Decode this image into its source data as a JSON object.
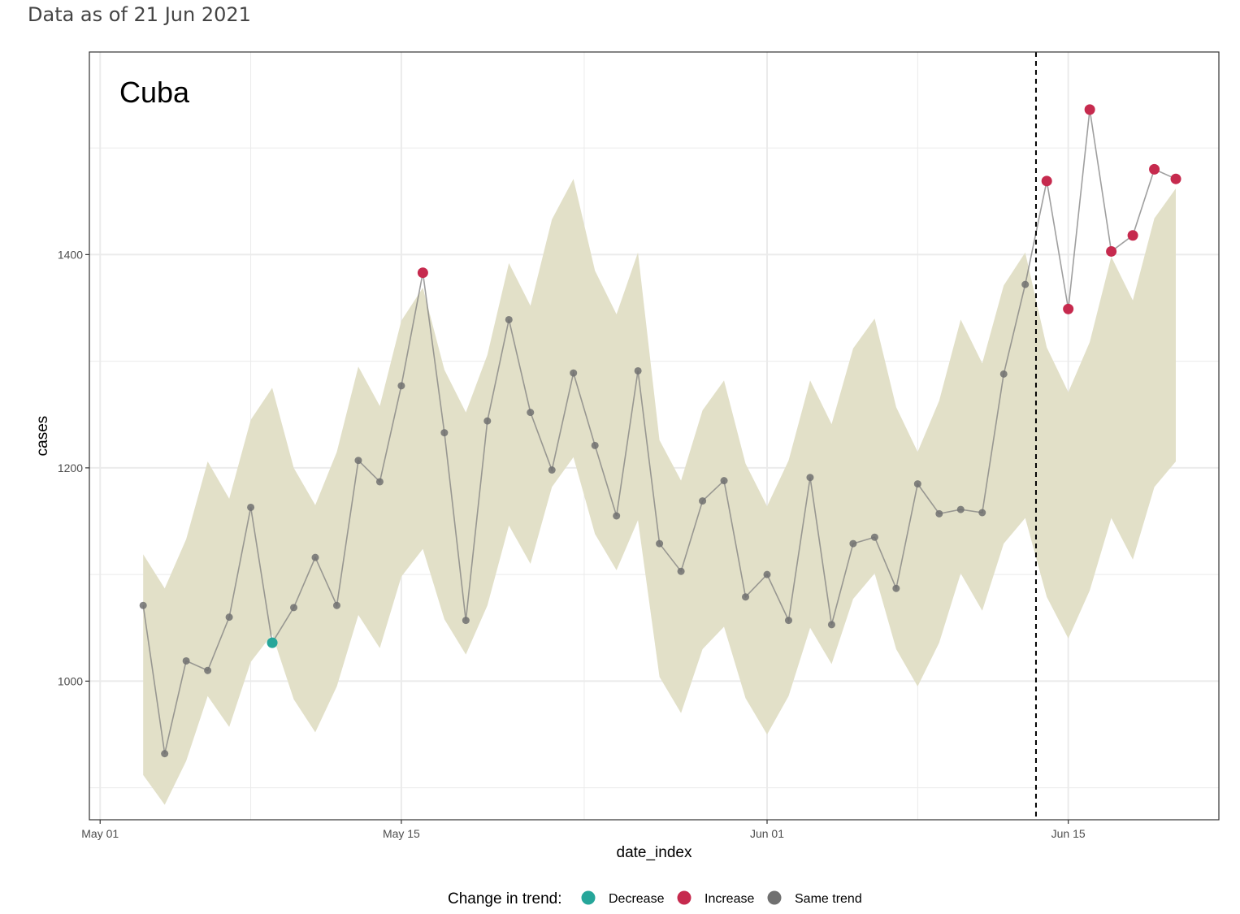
{
  "subtitle": "Data as of 21 Jun 2021",
  "colors": {
    "ribbon": "#e2e0c8",
    "line": "#7f7f7f",
    "decrease": "#26a69a",
    "increase": "#c62a4e",
    "same": "#707070",
    "grid": "#ebebeb",
    "vline": "#000000"
  },
  "chart_data": {
    "type": "line",
    "title": "Cuba",
    "xlabel": "date_index",
    "ylabel": "cases",
    "ylim": [
      870,
      1590
    ],
    "x_start": "2021-05-01",
    "xlim_days": [
      -0.5,
      52.0
    ],
    "xticks": [
      {
        "day": 0,
        "label": "May 01"
      },
      {
        "day": 14,
        "label": "May 15"
      },
      {
        "day": 31,
        "label": "Jun 01"
      },
      {
        "day": 45,
        "label": "Jun 15"
      }
    ],
    "yticks": [
      1000,
      1200,
      1400
    ],
    "vline_day": 43.5,
    "grid": true,
    "legend": {
      "title": "Change in trend:",
      "position": "bottom",
      "entries": [
        {
          "key": "decrease",
          "label": "Decrease"
        },
        {
          "key": "increase",
          "label": "Increase"
        },
        {
          "key": "same",
          "label": "Same trend"
        }
      ]
    },
    "points": [
      {
        "day": 2,
        "value": 1071,
        "trend": "same"
      },
      {
        "day": 3,
        "value": 932,
        "trend": "same"
      },
      {
        "day": 4,
        "value": 1019,
        "trend": "same"
      },
      {
        "day": 5,
        "value": 1010,
        "trend": "same"
      },
      {
        "day": 6,
        "value": 1060,
        "trend": "same"
      },
      {
        "day": 7,
        "value": 1163,
        "trend": "same"
      },
      {
        "day": 8,
        "value": 1036,
        "trend": "decrease"
      },
      {
        "day": 9,
        "value": 1069,
        "trend": "same"
      },
      {
        "day": 10,
        "value": 1116,
        "trend": "same"
      },
      {
        "day": 11,
        "value": 1071,
        "trend": "same"
      },
      {
        "day": 12,
        "value": 1207,
        "trend": "same"
      },
      {
        "day": 13,
        "value": 1187,
        "trend": "same"
      },
      {
        "day": 14,
        "value": 1277,
        "trend": "same"
      },
      {
        "day": 15,
        "value": 1383,
        "trend": "increase"
      },
      {
        "day": 16,
        "value": 1233,
        "trend": "same"
      },
      {
        "day": 17,
        "value": 1057,
        "trend": "same"
      },
      {
        "day": 18,
        "value": 1244,
        "trend": "same"
      },
      {
        "day": 19,
        "value": 1339,
        "trend": "same"
      },
      {
        "day": 20,
        "value": 1252,
        "trend": "same"
      },
      {
        "day": 21,
        "value": 1198,
        "trend": "same"
      },
      {
        "day": 22,
        "value": 1289,
        "trend": "same"
      },
      {
        "day": 23,
        "value": 1221,
        "trend": "same"
      },
      {
        "day": 24,
        "value": 1155,
        "trend": "same"
      },
      {
        "day": 25,
        "value": 1291,
        "trend": "same"
      },
      {
        "day": 26,
        "value": 1129,
        "trend": "same"
      },
      {
        "day": 27,
        "value": 1103,
        "trend": "same"
      },
      {
        "day": 28,
        "value": 1169,
        "trend": "same"
      },
      {
        "day": 29,
        "value": 1188,
        "trend": "same"
      },
      {
        "day": 30,
        "value": 1079,
        "trend": "same"
      },
      {
        "day": 31,
        "value": 1100,
        "trend": "same"
      },
      {
        "day": 32,
        "value": 1057,
        "trend": "same"
      },
      {
        "day": 33,
        "value": 1191,
        "trend": "same"
      },
      {
        "day": 34,
        "value": 1053,
        "trend": "same"
      },
      {
        "day": 35,
        "value": 1129,
        "trend": "same"
      },
      {
        "day": 36,
        "value": 1135,
        "trend": "same"
      },
      {
        "day": 37,
        "value": 1087,
        "trend": "same"
      },
      {
        "day": 38,
        "value": 1185,
        "trend": "same"
      },
      {
        "day": 39,
        "value": 1157,
        "trend": "same"
      },
      {
        "day": 40,
        "value": 1161,
        "trend": "same"
      },
      {
        "day": 41,
        "value": 1158,
        "trend": "same"
      },
      {
        "day": 42,
        "value": 1288,
        "trend": "same"
      },
      {
        "day": 43,
        "value": 1372,
        "trend": "same"
      },
      {
        "day": 44,
        "value": 1469,
        "trend": "increase"
      },
      {
        "day": 45,
        "value": 1349,
        "trend": "increase"
      },
      {
        "day": 46,
        "value": 1536,
        "trend": "increase"
      },
      {
        "day": 47,
        "value": 1403,
        "trend": "increase"
      },
      {
        "day": 48,
        "value": 1418,
        "trend": "increase"
      },
      {
        "day": 49,
        "value": 1480,
        "trend": "increase"
      },
      {
        "day": 50,
        "value": 1471,
        "trend": "increase"
      }
    ],
    "ribbon": {
      "days": [
        2,
        3,
        4,
        5,
        6,
        7,
        8,
        9,
        10,
        11,
        12,
        13,
        14,
        15,
        16,
        17,
        18,
        19,
        20,
        21,
        22,
        23,
        24,
        25,
        26,
        27,
        28,
        29,
        30,
        31,
        32,
        33,
        34,
        35,
        36,
        37,
        38,
        39,
        40,
        41,
        42,
        43,
        44,
        45,
        46,
        47,
        48,
        49,
        50
      ],
      "upper": [
        1119,
        1087,
        1133,
        1206,
        1171,
        1245,
        1275,
        1200,
        1165,
        1215,
        1295,
        1258,
        1338,
        1369,
        1292,
        1252,
        1306,
        1392,
        1352,
        1433,
        1471,
        1385,
        1344,
        1402,
        1226,
        1188,
        1254,
        1282,
        1204,
        1164,
        1207,
        1282,
        1241,
        1312,
        1340,
        1257,
        1215,
        1263,
        1339,
        1298,
        1371,
        1402,
        1313,
        1271,
        1318,
        1398,
        1357,
        1434,
        1462
      ],
      "lower": [
        912,
        884,
        925,
        986,
        957,
        1018,
        1044,
        983,
        952,
        995,
        1062,
        1031,
        1098,
        1124,
        1058,
        1025,
        1071,
        1146,
        1110,
        1182,
        1210,
        1138,
        1104,
        1151,
        1004,
        970,
        1030,
        1051,
        984,
        950,
        986,
        1050,
        1016,
        1077,
        1101,
        1030,
        995,
        1036,
        1101,
        1066,
        1129,
        1153,
        1079,
        1040,
        1085,
        1153,
        1114,
        1182,
        1206
      ]
    }
  }
}
